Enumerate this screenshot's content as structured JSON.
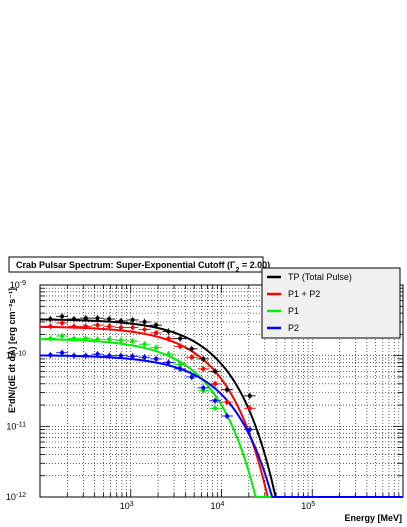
{
  "chart_data": {
    "type": "line",
    "title": "Crab Pulsar Spectrum: Super-Exponential Cutoff (Γ",
    "title_subscript": "2",
    "title_suffix": " = 2.00)",
    "xlabel": "Energy [MeV]",
    "ylabel": "E²dN/(dE dt dA) [erg cm⁻²s⁻¹]",
    "x_scale": "log",
    "y_scale": "log",
    "xlim": [
      100,
      1000000
    ],
    "ylim": [
      1e-12,
      1e-09
    ],
    "x_tick_labels": [
      {
        "value": 1000,
        "base": "10",
        "exp": "3"
      },
      {
        "value": 10000,
        "base": "10",
        "exp": "4"
      },
      {
        "value": 100000,
        "base": "10",
        "exp": "5"
      }
    ],
    "y_tick_labels": [
      {
        "value": 1e-09,
        "base": "10",
        "exp": "-9"
      },
      {
        "value": 1e-10,
        "base": "10",
        "exp": "-10"
      },
      {
        "value": 1e-11,
        "base": "10",
        "exp": "-11"
      },
      {
        "value": 1e-12,
        "base": "10",
        "exp": "-12"
      }
    ],
    "grid": true,
    "legend_position": "top-right",
    "series": [
      {
        "name": "TP (Total Pulse)",
        "color": "#000000",
        "points": [
          {
            "x": 130,
            "y": 3.3e-10
          },
          {
            "x": 175,
            "y": 3.6e-10
          },
          {
            "x": 237,
            "y": 3.3e-10
          },
          {
            "x": 320,
            "y": 3.4e-10
          },
          {
            "x": 430,
            "y": 3.4e-10
          },
          {
            "x": 580,
            "y": 3.3e-10
          },
          {
            "x": 780,
            "y": 3.1e-10
          },
          {
            "x": 1050,
            "y": 3.2e-10
          },
          {
            "x": 1420,
            "y": 3e-10
          },
          {
            "x": 1900,
            "y": 2.7e-10
          },
          {
            "x": 2600,
            "y": 2.2e-10
          },
          {
            "x": 3500,
            "y": 1.75e-10
          },
          {
            "x": 4700,
            "y": 1.25e-10
          },
          {
            "x": 6300,
            "y": 9e-11
          },
          {
            "x": 8500,
            "y": 6e-11
          },
          {
            "x": 11500,
            "y": 3.3e-11
          },
          {
            "x": 20500,
            "y": 2.7e-11
          }
        ],
        "model": {
          "norm": 3.3e-10,
          "cutoff": 6800,
          "b": 1.0
        }
      },
      {
        "name": "P1 + P2",
        "color": "#ff0000",
        "points": [
          {
            "x": 130,
            "y": 2.6e-10
          },
          {
            "x": 175,
            "y": 2.9e-10
          },
          {
            "x": 237,
            "y": 2.6e-10
          },
          {
            "x": 320,
            "y": 2.6e-10
          },
          {
            "x": 430,
            "y": 2.7e-10
          },
          {
            "x": 580,
            "y": 2.6e-10
          },
          {
            "x": 780,
            "y": 2.5e-10
          },
          {
            "x": 1050,
            "y": 2.5e-10
          },
          {
            "x": 1420,
            "y": 2.35e-10
          },
          {
            "x": 1900,
            "y": 2.1e-10
          },
          {
            "x": 2600,
            "y": 1.75e-10
          },
          {
            "x": 3500,
            "y": 1.35e-10
          },
          {
            "x": 4700,
            "y": 9.5e-11
          },
          {
            "x": 6300,
            "y": 6.5e-11
          },
          {
            "x": 8500,
            "y": 4e-11
          },
          {
            "x": 11500,
            "y": 2.2e-11
          },
          {
            "x": 20500,
            "y": 1.8e-11
          }
        ],
        "model": {
          "norm": 2.6e-10,
          "cutoff": 5800,
          "b": 1.0
        }
      },
      {
        "name": "P1",
        "color": "#00ee00",
        "points": [
          {
            "x": 130,
            "y": 1.75e-10
          },
          {
            "x": 175,
            "y": 1.9e-10
          },
          {
            "x": 237,
            "y": 1.75e-10
          },
          {
            "x": 320,
            "y": 1.75e-10
          },
          {
            "x": 430,
            "y": 1.7e-10
          },
          {
            "x": 580,
            "y": 1.7e-10
          },
          {
            "x": 780,
            "y": 1.65e-10
          },
          {
            "x": 1050,
            "y": 1.6e-10
          },
          {
            "x": 1420,
            "y": 1.45e-10
          },
          {
            "x": 1900,
            "y": 1.3e-10
          },
          {
            "x": 2600,
            "y": 1.05e-10
          },
          {
            "x": 3500,
            "y": 7.5e-11
          },
          {
            "x": 4700,
            "y": 5e-11
          },
          {
            "x": 6300,
            "y": 3.2e-11
          },
          {
            "x": 8500,
            "y": 1.8e-11
          }
        ],
        "model": {
          "norm": 1.75e-10,
          "cutoff": 4600,
          "b": 1.0
        }
      },
      {
        "name": "P2",
        "color": "#0000ff",
        "points": [
          {
            "x": 130,
            "y": 1.02e-10
          },
          {
            "x": 175,
            "y": 1.1e-10
          },
          {
            "x": 237,
            "y": 1e-10
          },
          {
            "x": 320,
            "y": 1e-10
          },
          {
            "x": 430,
            "y": 1.05e-10
          },
          {
            "x": 580,
            "y": 1e-10
          },
          {
            "x": 780,
            "y": 1e-10
          },
          {
            "x": 1050,
            "y": 9.8e-11
          },
          {
            "x": 1420,
            "y": 9.5e-11
          },
          {
            "x": 1900,
            "y": 9e-11
          },
          {
            "x": 2600,
            "y": 8e-11
          },
          {
            "x": 3500,
            "y": 6.5e-11
          },
          {
            "x": 4700,
            "y": 5e-11
          },
          {
            "x": 6300,
            "y": 3.5e-11
          },
          {
            "x": 8500,
            "y": 2.3e-11
          },
          {
            "x": 11500,
            "y": 1.4e-11
          },
          {
            "x": 20500,
            "y": 9e-12
          }
        ],
        "model": {
          "norm": 1.02e-10,
          "cutoff": 7800,
          "b": 1.0
        }
      }
    ]
  }
}
